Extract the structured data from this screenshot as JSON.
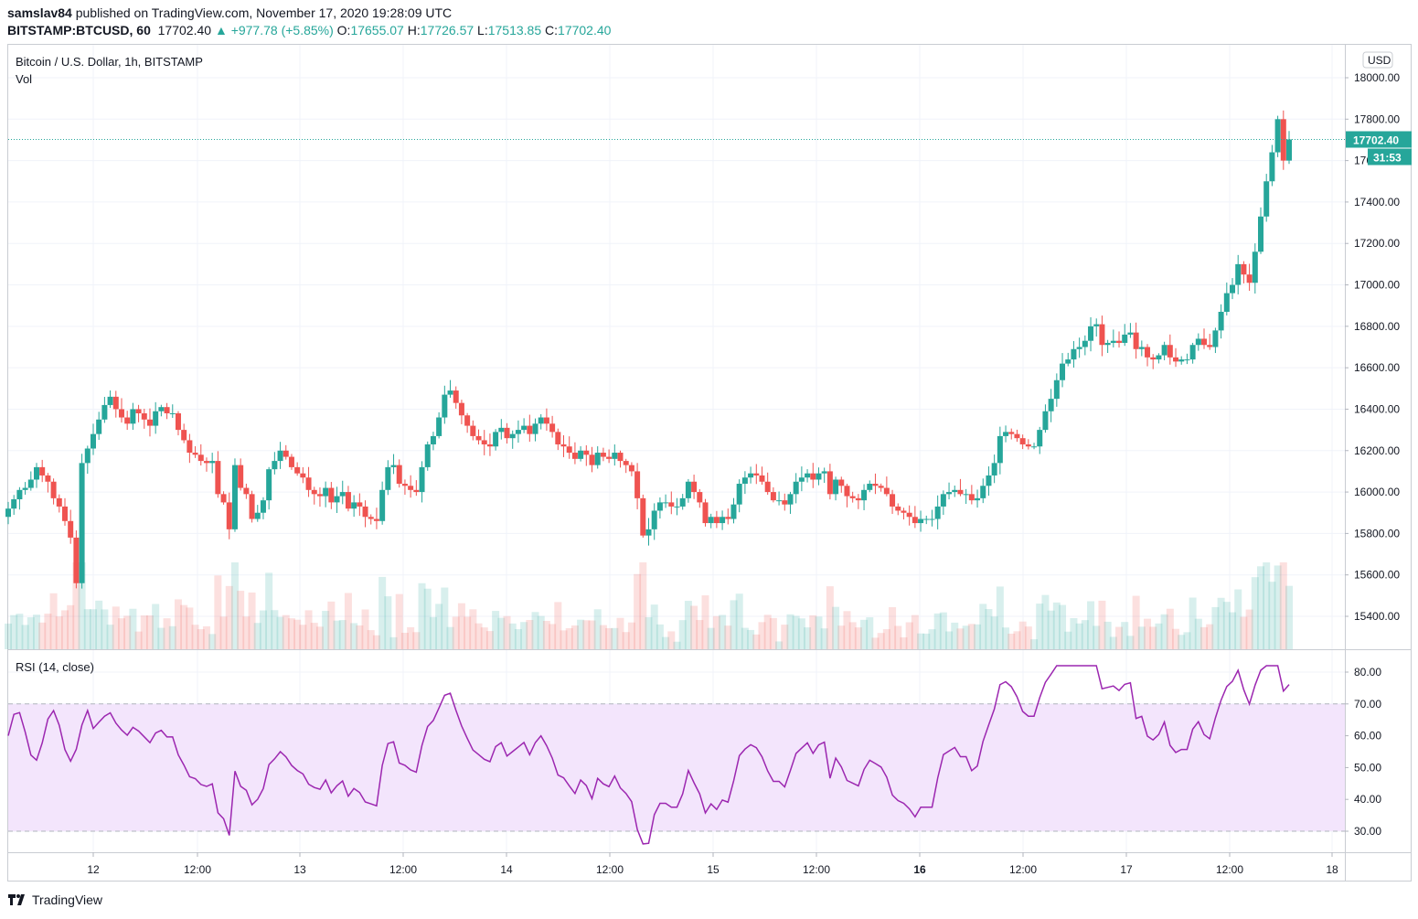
{
  "header": {
    "publisher": "samslav84",
    "published_text": "published on TradingView.com, November 17, 2020 19:28:09 UTC"
  },
  "quote": {
    "symbol": "BITSTAMP:BTCUSD, 60",
    "last": "17702.40",
    "change": "+977.78 (+5.85%)",
    "o_label": "O:",
    "o": "17655.07",
    "h_label": "H:",
    "h": "17726.57",
    "l_label": "L:",
    "l": "17513.85",
    "c_label": "C:",
    "c": "17702.40"
  },
  "price_pane": {
    "title": "Bitcoin / U.S. Dollar, 1h, BITSTAMP",
    "volume_label": "Vol",
    "currency": "USD",
    "last_price_label": "17702.40",
    "countdown": "31:53",
    "price_ticks": [
      "18000.00",
      "17800.00",
      "17600.00",
      "17400.00",
      "17200.00",
      "17000.00",
      "16800.00",
      "16600.00",
      "16400.00",
      "16200.00",
      "16000.00",
      "15800.00",
      "15600.00",
      "15400.00"
    ]
  },
  "rsi_pane": {
    "title": "RSI (14, close)",
    "ticks": [
      "80.00",
      "70.00",
      "60.00",
      "50.00",
      "40.00",
      "30.00"
    ],
    "upper_band": 70,
    "lower_band": 30
  },
  "time_axis": {
    "labels": [
      "12",
      "12:00",
      "13",
      "12:00",
      "14",
      "12:00",
      "15",
      "12:00",
      "16",
      "12:00",
      "17",
      "12:00",
      "18"
    ]
  },
  "footer": {
    "brand": "TradingView"
  },
  "colors": {
    "up": "#26a69a",
    "down": "#ef5350",
    "rsi_line": "#9c27b0",
    "rsi_band_fill": "#f3e5fc",
    "grid": "#f0f3fa"
  },
  "chart_data": {
    "type": "candlestick",
    "title": "Bitcoin / U.S. Dollar, 1h, BITSTAMP",
    "x_range": [
      "2020-11-11 09:00",
      "2020-11-17 19:00"
    ],
    "ylim": [
      15300,
      18100
    ],
    "rsi_ylim": [
      24,
      84
    ],
    "close": [
      15920,
      15965,
      16010,
      16020,
      16060,
      16120,
      16080,
      16050,
      15970,
      15930,
      15860,
      15780,
      15560,
      16140,
      16210,
      16280,
      16350,
      16420,
      16460,
      16400,
      16360,
      16330,
      16400,
      16380,
      16350,
      16320,
      16390,
      16410,
      16380,
      16380,
      16300,
      16250,
      16190,
      16180,
      16150,
      16140,
      16150,
      15990,
      15950,
      15820,
      16130,
      16020,
      15990,
      15870,
      15900,
      15960,
      16110,
      16150,
      16200,
      16170,
      16120,
      16090,
      16070,
      16010,
      15990,
      15980,
      16020,
      15950,
      15980,
      16000,
      15920,
      15950,
      15930,
      15880,
      15870,
      15860,
      16010,
      16120,
      16130,
      16040,
      16030,
      16010,
      16000,
      16120,
      16230,
      16270,
      16360,
      16470,
      16490,
      16430,
      16370,
      16320,
      16270,
      16250,
      16230,
      16220,
      16290,
      16310,
      16260,
      16280,
      16300,
      16320,
      16280,
      16330,
      16360,
      16330,
      16290,
      16230,
      16220,
      16190,
      16160,
      16200,
      16180,
      16130,
      16190,
      16170,
      16160,
      16190,
      16150,
      16130,
      16100,
      15970,
      15790,
      15820,
      15910,
      15950,
      15950,
      15930,
      15930,
      15970,
      16050,
      16000,
      15950,
      15850,
      15880,
      15850,
      15880,
      15870,
      15940,
      16040,
      16070,
      16090,
      16080,
      16050,
      16000,
      15960,
      15960,
      15940,
      15990,
      16050,
      16070,
      16090,
      16060,
      16090,
      16100,
      15990,
      16060,
      16030,
      15980,
      15970,
      15960,
      16010,
      16040,
      16030,
      16020,
      15990,
      15930,
      15910,
      15900,
      15880,
      15850,
      15870,
      15870,
      15870,
      15930,
      15990,
      16000,
      16010,
      15990,
      15990,
      15960,
      15970,
      16030,
      16080,
      16140,
      16270,
      16290,
      16280,
      16260,
      16230,
      16220,
      16220,
      16300,
      16390,
      16450,
      16540,
      16620,
      16640,
      16690,
      16700,
      16730,
      16800,
      16810,
      16710,
      16720,
      16730,
      16720,
      16760,
      16770,
      16690,
      16700,
      16650,
      16640,
      16660,
      16710,
      16650,
      16630,
      16640,
      16640,
      16710,
      16740,
      16710,
      16700,
      16780,
      16870,
      16960,
      17000,
      17100,
      17050,
      17010,
      17160,
      17330,
      17500,
      17640,
      17800,
      17600,
      17702
    ]
  }
}
